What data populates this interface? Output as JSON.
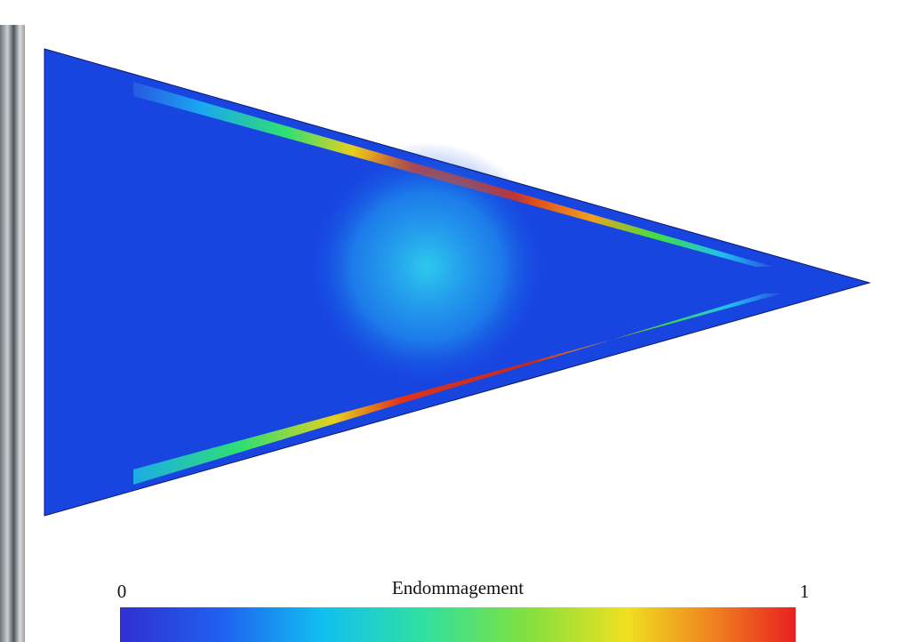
{
  "colorbar": {
    "title": "Endommagement",
    "min": 0,
    "max": 1
  }
}
